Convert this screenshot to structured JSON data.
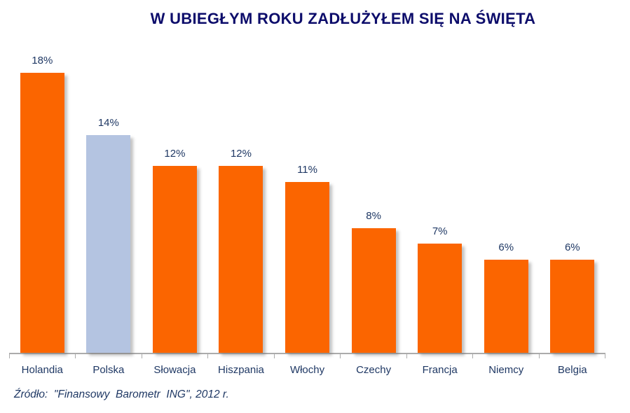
{
  "title": "W UBIEGŁYM ROKU ZADŁUŻYŁEM SIĘ NA ŚWIĘTA",
  "source": "Źródło:  \"Finansowy  Barometr  ING\", 2012 r.",
  "colors": {
    "bar": "#fb6500",
    "highlight_bar": "#b4c4e1",
    "title_text": "#0d0d6b",
    "label_text": "#1f3864",
    "axis": "#ababab"
  },
  "chart_data": {
    "type": "bar",
    "title": "W UBIEGŁYM ROKU ZADŁUŻYŁEM SIĘ NA ŚWIĘTA",
    "categories": [
      "Holandia",
      "Polska",
      "Słowacja",
      "Hiszpania",
      "Włochy",
      "Czechy",
      "Francja",
      "Niemcy",
      "Belgia"
    ],
    "values": [
      18,
      14,
      12,
      12,
      11,
      8,
      7,
      6,
      6
    ],
    "value_labels": [
      "18%",
      "14%",
      "12%",
      "12%",
      "11%",
      "8%",
      "7%",
      "6%",
      "6%"
    ],
    "highlight_index": 1,
    "highlight_category": "Polska",
    "xlabel": "",
    "ylabel": "",
    "ylim": [
      0,
      18.9
    ],
    "grid": false,
    "legend": false,
    "source": "Źródło:  \"Finansowy  Barometr  ING\", 2012 r."
  }
}
